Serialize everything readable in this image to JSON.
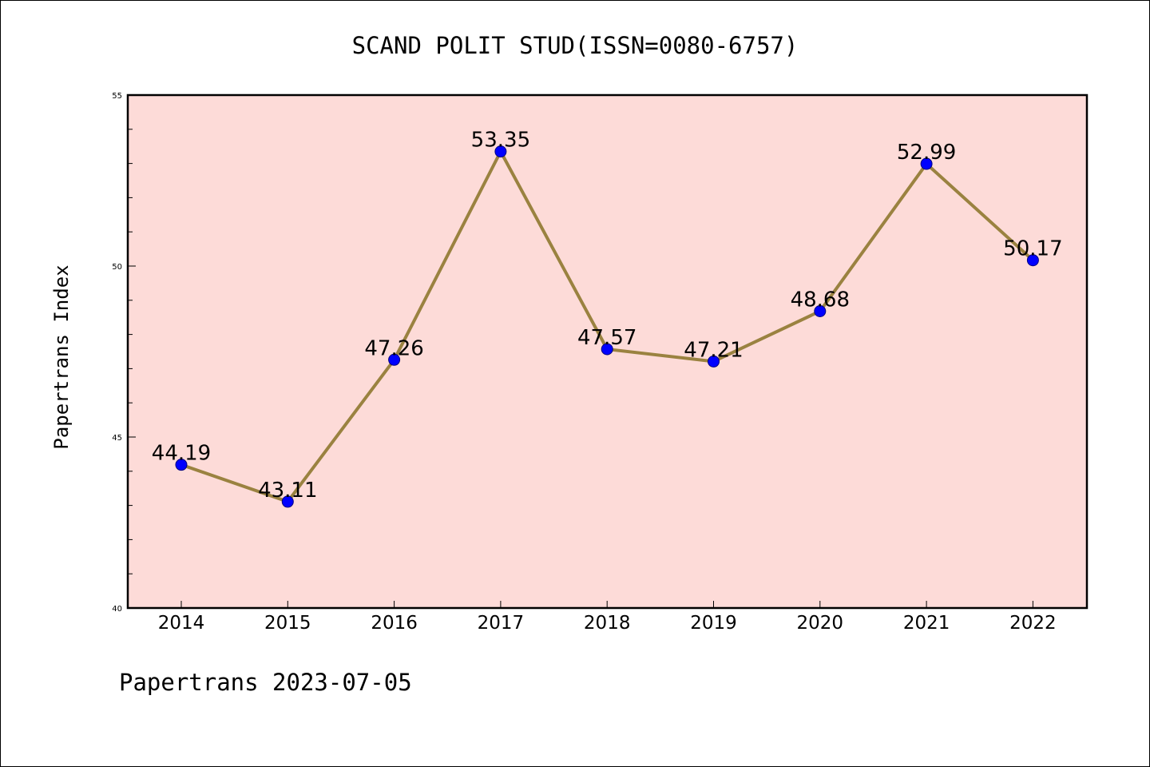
{
  "chart_data": {
    "type": "line",
    "title": "SCAND POLIT STUD(ISSN=0080-6757)",
    "ylabel": "Papertrans Index",
    "xlabel": "",
    "categories": [
      "2014",
      "2015",
      "2016",
      "2017",
      "2018",
      "2019",
      "2020",
      "2021",
      "2022"
    ],
    "series": [
      {
        "values": [
          44.19,
          43.11,
          47.26,
          53.35,
          47.57,
          47.21,
          48.68,
          52.99,
          50.17
        ],
        "labels": [
          "44.19",
          "43.11",
          "47.26",
          "53.35",
          "47.57",
          "47.21",
          "48.68",
          "52.99",
          "50.17"
        ]
      }
    ],
    "ylim": [
      40,
      55
    ],
    "yticks": [
      40,
      45,
      50,
      55
    ],
    "ytick_labels": [
      "40",
      "45",
      "50",
      "55"
    ],
    "y_minor_step": 1,
    "grid": false,
    "legend": "none",
    "colors": {
      "plot_background": "#fddbd8",
      "line": "#9a8240",
      "marker": "#0000ff",
      "marker_edge": "#000080",
      "axes": "#000000"
    }
  },
  "footer": {
    "text": "Papertrans 2023-07-05"
  }
}
